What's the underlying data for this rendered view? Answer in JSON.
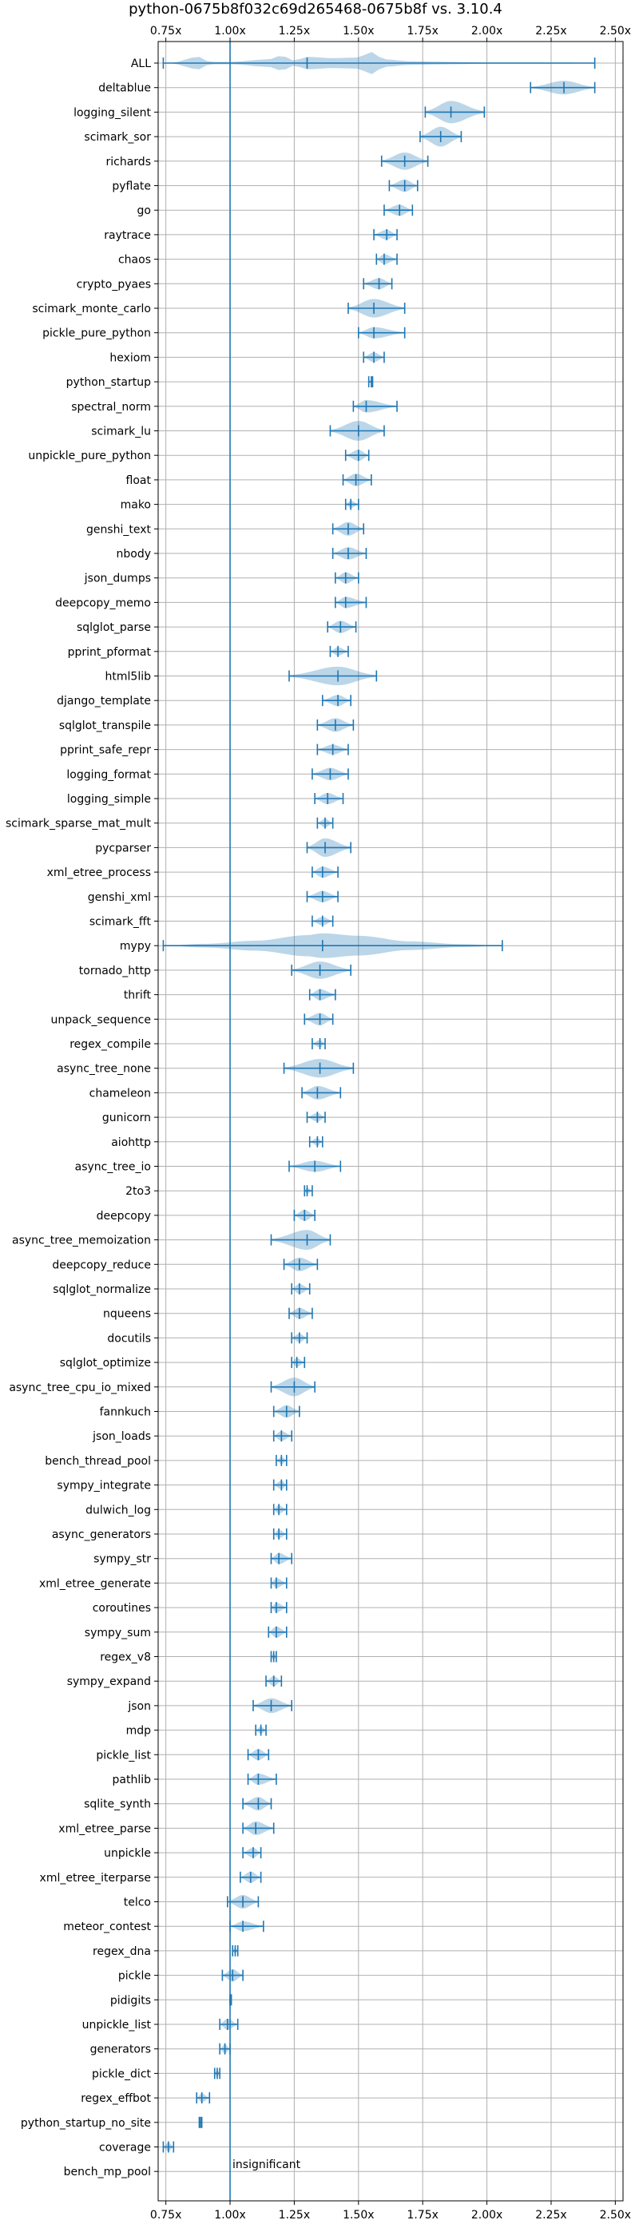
{
  "chart_data": {
    "type": "violin",
    "title": "python-0675b8f032c69d265468-0675b8f vs. 3.10.4",
    "xlabel": "",
    "ylabel": "",
    "xlim": [
      0.72,
      2.53
    ],
    "x_ticks": [
      0.75,
      1.0,
      1.25,
      1.5,
      1.75,
      2.0,
      2.25,
      2.5
    ],
    "x_tick_labels": [
      "0.75x",
      "1.00x",
      "1.25x",
      "1.50x",
      "1.75x",
      "2.00x",
      "2.25x",
      "2.50x"
    ],
    "x_tick_position": "top-and-bottom",
    "grid": true,
    "reference_line": 1.0,
    "annotation": {
      "text": "insignificant",
      "row": "bench_mp_pool"
    },
    "colors": {
      "violin": "#1f77b4",
      "violin_alpha": 0.3,
      "line": "#1f77b4",
      "grid": "#b0b0b0"
    },
    "series": [
      {
        "name": "ALL",
        "min": 0.74,
        "median": 1.3,
        "max": 2.42,
        "width": 0.06,
        "modes": [
          [
            0.76,
            0.0
          ],
          [
            0.88,
            0.5
          ],
          [
            0.92,
            0.1
          ],
          [
            1.0,
            0.1
          ],
          [
            1.15,
            0.3
          ],
          [
            1.2,
            0.6
          ],
          [
            1.25,
            0.2
          ],
          [
            1.3,
            0.5
          ],
          [
            1.4,
            0.4
          ],
          [
            1.5,
            0.45
          ],
          [
            1.55,
            0.9
          ],
          [
            1.6,
            0.3
          ],
          [
            1.7,
            0.15
          ],
          [
            1.85,
            0.1
          ],
          [
            2.0,
            0.05
          ],
          [
            2.3,
            0.05
          ],
          [
            2.42,
            0.0
          ]
        ]
      },
      {
        "name": "deltablue",
        "min": 2.17,
        "median": 2.3,
        "max": 2.42,
        "width": 0.55
      },
      {
        "name": "logging_silent",
        "min": 1.76,
        "median": 1.86,
        "max": 1.99,
        "width": 0.9
      },
      {
        "name": "scimark_sor",
        "min": 1.74,
        "median": 1.82,
        "max": 1.9,
        "width": 0.8
      },
      {
        "name": "richards",
        "min": 1.59,
        "median": 1.68,
        "max": 1.77,
        "width": 0.7
      },
      {
        "name": "pyflate",
        "min": 1.62,
        "median": 1.68,
        "max": 1.73,
        "width": 0.5
      },
      {
        "name": "go",
        "min": 1.6,
        "median": 1.66,
        "max": 1.71,
        "width": 0.45
      },
      {
        "name": "raytrace",
        "min": 1.56,
        "median": 1.61,
        "max": 1.65,
        "width": 0.4
      },
      {
        "name": "chaos",
        "min": 1.57,
        "median": 1.6,
        "max": 1.65,
        "width": 0.4
      },
      {
        "name": "crypto_pyaes",
        "min": 1.52,
        "median": 1.58,
        "max": 1.63,
        "width": 0.45
      },
      {
        "name": "scimark_monte_carlo",
        "min": 1.46,
        "median": 1.56,
        "max": 1.68,
        "width": 0.75
      },
      {
        "name": "pickle_pure_python",
        "min": 1.5,
        "median": 1.56,
        "max": 1.68,
        "width": 0.45
      },
      {
        "name": "hexiom",
        "min": 1.52,
        "median": 1.56,
        "max": 1.6,
        "width": 0.4
      },
      {
        "name": "python_startup",
        "min": 1.54,
        "median": 1.55,
        "max": 1.555,
        "width": 0.15
      },
      {
        "name": "spectral_norm",
        "min": 1.48,
        "median": 1.53,
        "max": 1.65,
        "width": 0.5
      },
      {
        "name": "scimark_lu",
        "min": 1.39,
        "median": 1.5,
        "max": 1.6,
        "width": 0.8
      },
      {
        "name": "unpickle_pure_python",
        "min": 1.45,
        "median": 1.5,
        "max": 1.54,
        "width": 0.45
      },
      {
        "name": "float",
        "min": 1.44,
        "median": 1.49,
        "max": 1.55,
        "width": 0.5
      },
      {
        "name": "mako",
        "min": 1.45,
        "median": 1.47,
        "max": 1.5,
        "width": 0.3
      },
      {
        "name": "genshi_text",
        "min": 1.4,
        "median": 1.46,
        "max": 1.52,
        "width": 0.55
      },
      {
        "name": "nbody",
        "min": 1.4,
        "median": 1.46,
        "max": 1.53,
        "width": 0.5
      },
      {
        "name": "json_dumps",
        "min": 1.41,
        "median": 1.45,
        "max": 1.5,
        "width": 0.45
      },
      {
        "name": "deepcopy_memo",
        "min": 1.41,
        "median": 1.45,
        "max": 1.53,
        "width": 0.45
      },
      {
        "name": "sqlglot_parse",
        "min": 1.38,
        "median": 1.43,
        "max": 1.49,
        "width": 0.5
      },
      {
        "name": "pprint_pformat",
        "min": 1.39,
        "median": 1.42,
        "max": 1.46,
        "width": 0.35
      },
      {
        "name": "html5lib",
        "min": 1.23,
        "median": 1.42,
        "max": 1.57,
        "width": 0.75
      },
      {
        "name": "django_template",
        "min": 1.36,
        "median": 1.42,
        "max": 1.47,
        "width": 0.45
      },
      {
        "name": "sqlglot_transpile",
        "min": 1.34,
        "median": 1.41,
        "max": 1.48,
        "width": 0.55
      },
      {
        "name": "pprint_safe_repr",
        "min": 1.34,
        "median": 1.4,
        "max": 1.46,
        "width": 0.4
      },
      {
        "name": "logging_format",
        "min": 1.32,
        "median": 1.39,
        "max": 1.46,
        "width": 0.5
      },
      {
        "name": "logging_simple",
        "min": 1.33,
        "median": 1.38,
        "max": 1.44,
        "width": 0.45
      },
      {
        "name": "scimark_sparse_mat_mult",
        "min": 1.34,
        "median": 1.37,
        "max": 1.4,
        "width": 0.35
      },
      {
        "name": "pycparser",
        "min": 1.3,
        "median": 1.37,
        "max": 1.47,
        "width": 0.75
      },
      {
        "name": "xml_etree_process",
        "min": 1.32,
        "median": 1.36,
        "max": 1.42,
        "width": 0.45
      },
      {
        "name": "genshi_xml",
        "min": 1.3,
        "median": 1.36,
        "max": 1.42,
        "width": 0.45
      },
      {
        "name": "scimark_fft",
        "min": 1.32,
        "median": 1.36,
        "max": 1.4,
        "width": 0.35
      },
      {
        "name": "mypy",
        "min": 0.74,
        "median": 1.36,
        "max": 2.06,
        "width": 0.95,
        "modes": [
          [
            0.74,
            0.0
          ],
          [
            0.9,
            0.15
          ],
          [
            1.1,
            0.4
          ],
          [
            1.3,
            0.85
          ],
          [
            1.36,
            1.0
          ],
          [
            1.5,
            0.8
          ],
          [
            1.7,
            0.35
          ],
          [
            1.9,
            0.12
          ],
          [
            2.06,
            0.0
          ]
        ]
      },
      {
        "name": "tornado_http",
        "min": 1.24,
        "median": 1.35,
        "max": 1.47,
        "width": 0.7
      },
      {
        "name": "thrift",
        "min": 1.31,
        "median": 1.35,
        "max": 1.41,
        "width": 0.45
      },
      {
        "name": "unpack_sequence",
        "min": 1.29,
        "median": 1.35,
        "max": 1.4,
        "width": 0.5
      },
      {
        "name": "regex_compile",
        "min": 1.32,
        "median": 1.35,
        "max": 1.37,
        "width": 0.3
      },
      {
        "name": "async_tree_none",
        "min": 1.21,
        "median": 1.35,
        "max": 1.48,
        "width": 0.75
      },
      {
        "name": "chameleon",
        "min": 1.28,
        "median": 1.34,
        "max": 1.43,
        "width": 0.55
      },
      {
        "name": "gunicorn",
        "min": 1.3,
        "median": 1.34,
        "max": 1.37,
        "width": 0.35
      },
      {
        "name": "aiohttp",
        "min": 1.31,
        "median": 1.34,
        "max": 1.36,
        "width": 0.3
      },
      {
        "name": "async_tree_io",
        "min": 1.23,
        "median": 1.33,
        "max": 1.43,
        "width": 0.45
      },
      {
        "name": "2to3",
        "min": 1.29,
        "median": 1.3,
        "max": 1.32,
        "width": 0.25
      },
      {
        "name": "deepcopy",
        "min": 1.25,
        "median": 1.29,
        "max": 1.33,
        "width": 0.45
      },
      {
        "name": "async_tree_memoization",
        "min": 1.16,
        "median": 1.3,
        "max": 1.39,
        "width": 0.8
      },
      {
        "name": "deepcopy_reduce",
        "min": 1.21,
        "median": 1.27,
        "max": 1.34,
        "width": 0.55
      },
      {
        "name": "sqlglot_normalize",
        "min": 1.24,
        "median": 1.27,
        "max": 1.31,
        "width": 0.4
      },
      {
        "name": "nqueens",
        "min": 1.23,
        "median": 1.27,
        "max": 1.32,
        "width": 0.45
      },
      {
        "name": "docutils",
        "min": 1.24,
        "median": 1.27,
        "max": 1.3,
        "width": 0.35
      },
      {
        "name": "sqlglot_optimize",
        "min": 1.24,
        "median": 1.26,
        "max": 1.29,
        "width": 0.35
      },
      {
        "name": "async_tree_cpu_io_mixed",
        "min": 1.16,
        "median": 1.25,
        "max": 1.33,
        "width": 0.75
      },
      {
        "name": "fannkuch",
        "min": 1.17,
        "median": 1.22,
        "max": 1.27,
        "width": 0.5
      },
      {
        "name": "json_loads",
        "min": 1.17,
        "median": 1.2,
        "max": 1.24,
        "width": 0.4
      },
      {
        "name": "bench_thread_pool",
        "min": 1.18,
        "median": 1.2,
        "max": 1.22,
        "width": 0.3
      },
      {
        "name": "sympy_integrate",
        "min": 1.17,
        "median": 1.2,
        "max": 1.22,
        "width": 0.35
      },
      {
        "name": "dulwich_log",
        "min": 1.17,
        "median": 1.19,
        "max": 1.22,
        "width": 0.35
      },
      {
        "name": "async_generators",
        "min": 1.17,
        "median": 1.19,
        "max": 1.22,
        "width": 0.35
      },
      {
        "name": "sympy_str",
        "min": 1.16,
        "median": 1.19,
        "max": 1.24,
        "width": 0.45
      },
      {
        "name": "xml_etree_generate",
        "min": 1.16,
        "median": 1.18,
        "max": 1.22,
        "width": 0.4
      },
      {
        "name": "coroutines",
        "min": 1.16,
        "median": 1.18,
        "max": 1.22,
        "width": 0.4
      },
      {
        "name": "sympy_sum",
        "min": 1.15,
        "median": 1.18,
        "max": 1.22,
        "width": 0.45
      },
      {
        "name": "regex_v8",
        "min": 1.16,
        "median": 1.17,
        "max": 1.18,
        "width": 0.3
      },
      {
        "name": "sympy_expand",
        "min": 1.14,
        "median": 1.17,
        "max": 1.2,
        "width": 0.4
      },
      {
        "name": "json",
        "min": 1.09,
        "median": 1.16,
        "max": 1.24,
        "width": 0.6
      },
      {
        "name": "mdp",
        "min": 1.1,
        "median": 1.12,
        "max": 1.14,
        "width": 0.3
      },
      {
        "name": "pickle_list",
        "min": 1.07,
        "median": 1.11,
        "max": 1.15,
        "width": 0.45
      },
      {
        "name": "pathlib",
        "min": 1.07,
        "median": 1.11,
        "max": 1.18,
        "width": 0.45
      },
      {
        "name": "sqlite_synth",
        "min": 1.05,
        "median": 1.11,
        "max": 1.16,
        "width": 0.55
      },
      {
        "name": "xml_etree_parse",
        "min": 1.05,
        "median": 1.1,
        "max": 1.17,
        "width": 0.55
      },
      {
        "name": "unpickle",
        "min": 1.05,
        "median": 1.09,
        "max": 1.12,
        "width": 0.4
      },
      {
        "name": "xml_etree_iterparse",
        "min": 1.04,
        "median": 1.08,
        "max": 1.12,
        "width": 0.45
      },
      {
        "name": "telco",
        "min": 0.99,
        "median": 1.05,
        "max": 1.11,
        "width": 0.55
      },
      {
        "name": "meteor_contest",
        "min": 1.0,
        "median": 1.05,
        "max": 1.13,
        "width": 0.4
      },
      {
        "name": "regex_dna",
        "min": 1.01,
        "median": 1.02,
        "max": 1.03,
        "width": 0.25
      },
      {
        "name": "pickle",
        "min": 0.97,
        "median": 1.01,
        "max": 1.05,
        "width": 0.5
      },
      {
        "name": "pidigits",
        "min": 1.0,
        "median": 1.0,
        "max": 1.005,
        "width": 0.15
      },
      {
        "name": "unpickle_list",
        "min": 0.96,
        "median": 0.99,
        "max": 1.03,
        "width": 0.45
      },
      {
        "name": "generators",
        "min": 0.96,
        "median": 0.98,
        "max": 1.0,
        "width": 0.35
      },
      {
        "name": "pickle_dict",
        "min": 0.94,
        "median": 0.95,
        "max": 0.96,
        "width": 0.3
      },
      {
        "name": "regex_effbot",
        "min": 0.87,
        "median": 0.89,
        "max": 0.92,
        "width": 0.35
      },
      {
        "name": "python_startup_no_site",
        "min": 0.88,
        "median": 0.885,
        "max": 0.89,
        "width": 0.15
      },
      {
        "name": "coverage",
        "min": 0.74,
        "median": 0.76,
        "max": 0.78,
        "width": 0.35
      },
      {
        "name": "bench_mp_pool",
        "min": null,
        "median": null,
        "max": null,
        "width": 0
      }
    ]
  }
}
